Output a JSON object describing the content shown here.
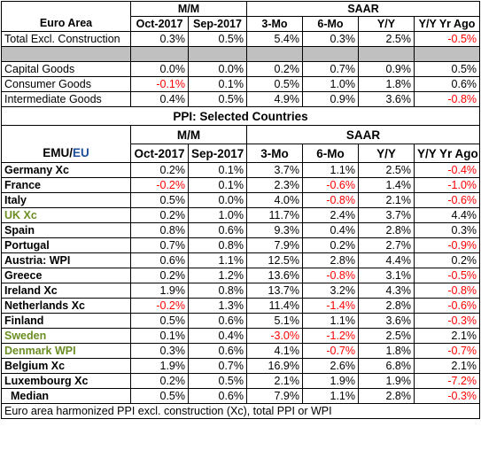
{
  "top": {
    "header1": {
      "mm": "M/M",
      "saar": "SAAR"
    },
    "header2": {
      "area": "Euro Area",
      "c1": "Oct-2017",
      "c2": "Sep-2017",
      "c3": "3-Mo",
      "c4": "6-Mo",
      "c5": "Y/Y",
      "c6": "Y/Y Yr Ago"
    },
    "rows": [
      {
        "label": "Total Excl. Construction",
        "v": [
          "0.3%",
          "0.5%",
          "5.4%",
          "0.3%",
          "2.5%",
          "-0.5%"
        ]
      },
      {
        "label": "Capital Goods",
        "v": [
          "0.0%",
          "0.0%",
          "0.2%",
          "0.7%",
          "0.9%",
          "0.5%"
        ]
      },
      {
        "label": "Consumer Goods",
        "v": [
          "-0.1%",
          "0.1%",
          "0.5%",
          "1.0%",
          "1.8%",
          "0.6%"
        ]
      },
      {
        "label": "Intermediate Goods",
        "v": [
          "0.4%",
          "0.5%",
          "4.9%",
          "0.9%",
          "3.6%",
          "-0.8%"
        ]
      }
    ]
  },
  "section_title": "PPI: Selected Countries",
  "countries": {
    "header1": {
      "mm": "M/M",
      "saar": "SAAR"
    },
    "header2": {
      "emu": "EMU",
      "slash": "/",
      "eu": "EU",
      "c1": "Oct-2017",
      "c2": "Sep-2017",
      "c3": "3-Mo",
      "c4": "6-Mo",
      "c5": "Y/Y",
      "c6": "Y/Y Yr Ago"
    },
    "rows": [
      {
        "label": "Germany Xc",
        "v": [
          "0.2%",
          "0.1%",
          "3.7%",
          "1.1%",
          "2.5%",
          "-0.4%"
        ]
      },
      {
        "label": "France",
        "v": [
          "-0.2%",
          "0.1%",
          "2.3%",
          "-0.6%",
          "1.4%",
          "-1.0%"
        ]
      },
      {
        "label": "Italy",
        "v": [
          "0.5%",
          "0.0%",
          "4.0%",
          "-0.8%",
          "2.1%",
          "-0.6%"
        ]
      },
      {
        "label": "UK Xc",
        "v": [
          "0.2%",
          "1.0%",
          "11.7%",
          "2.4%",
          "3.7%",
          "4.4%"
        ]
      },
      {
        "label": "Spain",
        "v": [
          "0.8%",
          "0.6%",
          "9.3%",
          "0.4%",
          "2.8%",
          "0.3%"
        ]
      },
      {
        "label": "Portugal",
        "v": [
          "0.7%",
          "0.8%",
          "7.9%",
          "0.2%",
          "2.7%",
          "-0.9%"
        ]
      },
      {
        "label": "Austria: WPI",
        "v": [
          "0.6%",
          "1.1%",
          "12.5%",
          "2.8%",
          "4.4%",
          "0.2%"
        ]
      },
      {
        "label": "Greece",
        "v": [
          "0.2%",
          "1.2%",
          "13.6%",
          "-0.8%",
          "3.1%",
          "-0.5%"
        ]
      },
      {
        "label": "Ireland Xc",
        "v": [
          "1.9%",
          "0.8%",
          "13.7%",
          "3.2%",
          "4.3%",
          "-0.8%"
        ]
      },
      {
        "label": "Netherlands Xc",
        "v": [
          "-0.2%",
          "1.3%",
          "11.4%",
          "-1.4%",
          "2.8%",
          "-0.6%"
        ]
      },
      {
        "label": "Finland",
        "v": [
          "0.5%",
          "0.6%",
          "5.1%",
          "1.1%",
          "3.6%",
          "-0.3%"
        ]
      },
      {
        "label": "Sweden",
        "v": [
          "0.1%",
          "0.4%",
          "-3.0%",
          "-1.2%",
          "2.5%",
          "2.1%"
        ]
      },
      {
        "label": "Denmark WPI",
        "v": [
          "0.3%",
          "0.6%",
          "4.1%",
          "-0.7%",
          "1.8%",
          "-0.7%"
        ]
      },
      {
        "label": "Belgium Xc",
        "v": [
          "1.9%",
          "0.7%",
          "16.9%",
          "2.6%",
          "6.8%",
          "2.1%"
        ]
      },
      {
        "label": "Luxembourg Xc",
        "v": [
          "0.2%",
          "0.5%",
          "2.1%",
          "1.9%",
          "1.9%",
          "-7.2%"
        ]
      }
    ],
    "median": {
      "label": "Median",
      "v": [
        "0.5%",
        "0.6%",
        "7.9%",
        "1.1%",
        "2.8%",
        "-0.3%"
      ]
    }
  },
  "footnote": "Euro area harmonized PPI excl. construction (Xc), total PPI or WPI",
  "colors": {
    "negative": "#ff0000",
    "eu_label": "#1f4e9c",
    "non_emu": "#6b8e23",
    "separator": "#c0c0c0"
  }
}
